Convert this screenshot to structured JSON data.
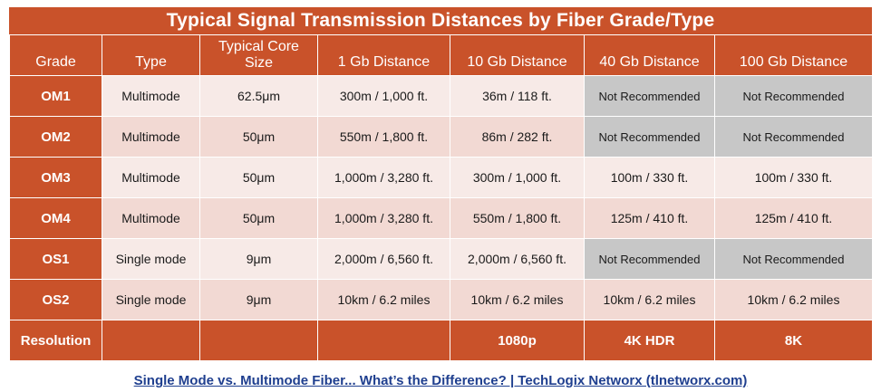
{
  "title": "Typical Signal Transmission Distances by Fiber Grade/Type",
  "headers": [
    {
      "key": "grade",
      "label": "Grade"
    },
    {
      "key": "type",
      "label": "Type"
    },
    {
      "key": "core",
      "label": "Typical Core Size"
    },
    {
      "key": "g1",
      "label": "1 Gb Distance"
    },
    {
      "key": "g10",
      "label": "10 Gb Distance"
    },
    {
      "key": "g40",
      "label": "40 Gb Distance"
    },
    {
      "key": "g100",
      "label": "100 Gb Distance"
    }
  ],
  "rows": [
    {
      "grade": "OM1",
      "type": "Multimode",
      "core": "62.5μm",
      "g1": "300m / 1,000 ft.",
      "g10": "36m / 118 ft.",
      "g40": "Not Recommended",
      "g100": "Not Recommended"
    },
    {
      "grade": "OM2",
      "type": "Multimode",
      "core": "50μm",
      "g1": "550m / 1,800 ft.",
      "g10": "86m / 282 ft.",
      "g40": "Not Recommended",
      "g100": "Not Recommended"
    },
    {
      "grade": "OM3",
      "type": "Multimode",
      "core": "50μm",
      "g1": "1,000m / 3,280 ft.",
      "g10": "300m / 1,000 ft.",
      "g40": "100m / 330 ft.",
      "g100": "100m / 330 ft."
    },
    {
      "grade": "OM4",
      "type": "Multimode",
      "core": "50μm",
      "g1": "1,000m / 3,280 ft.",
      "g10": "550m / 1,800 ft.",
      "g40": "125m / 410 ft.",
      "g100": "125m / 410 ft."
    },
    {
      "grade": "OS1",
      "type": "Single mode",
      "core": "9μm",
      "g1": "2,000m / 6,560 ft.",
      "g10": "2,000m / 6,560 ft.",
      "g40": "Not Recommended",
      "g100": "Not Recommended"
    },
    {
      "grade": "OS2",
      "type": "Single mode",
      "core": "9μm",
      "g1": "10km / 6.2 miles",
      "g10": "10km / 6.2 miles",
      "g40": "10km / 6.2 miles",
      "g100": "10km / 6.2 miles"
    }
  ],
  "footer": {
    "label": "Resolution",
    "g10": "1080p",
    "g40": "4K HDR",
    "g100": "8K"
  },
  "not_recommended": "Not Recommended",
  "caption": "Single Mode vs. Multimode Fiber... What’s the Difference? | TechLogix Networx (tlnetworx.com)",
  "colors": {
    "header": "#c9522a",
    "row_light": "#f7eae7",
    "row_dark": "#f2d9d3",
    "not_recommended": "#c7c7c7",
    "link": "#1f3f8f"
  }
}
